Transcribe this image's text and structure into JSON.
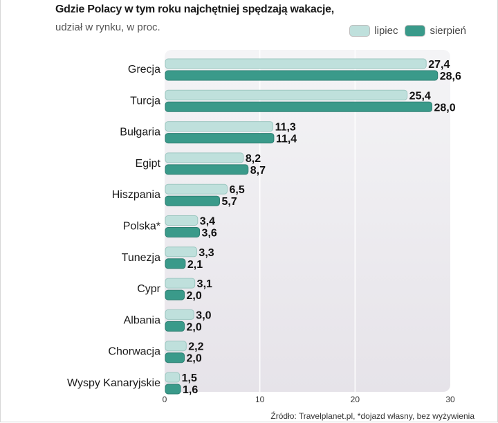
{
  "chart_data": {
    "type": "bar",
    "orientation": "horizontal",
    "title": "Gdzie Polacy w tym roku najchętniej spędzają wakacje,",
    "subtitle": "udział w rynku, w proc.",
    "categories": [
      "Grecja",
      "Turcja",
      "Bułgaria",
      "Egipt",
      "Hiszpania",
      "Polska*",
      "Tunezja",
      "Cypr",
      "Albania",
      "Chorwacja",
      "Wyspy Kanaryjskie"
    ],
    "series": [
      {
        "name": "lipiec",
        "color": "#bfe0dc",
        "values": [
          27.4,
          25.4,
          11.3,
          8.2,
          6.5,
          3.4,
          3.3,
          3.1,
          3.0,
          2.2,
          1.5
        ],
        "labels": [
          "27,4",
          "25,4",
          "11,3",
          "8,2",
          "6,5",
          "3,4",
          "3,3",
          "3,1",
          "3,0",
          "2,2",
          "1,5"
        ]
      },
      {
        "name": "sierpień",
        "color": "#3a9a8a",
        "values": [
          28.6,
          28.0,
          11.4,
          8.7,
          5.7,
          3.6,
          2.1,
          2.0,
          2.0,
          2.0,
          1.6
        ],
        "labels": [
          "28,6",
          "28,0",
          "11,4",
          "8,7",
          "5,7",
          "3,6",
          "2,1",
          "2,0",
          "2,0",
          "2,0",
          "1,6"
        ]
      }
    ],
    "xlim": [
      0,
      30
    ],
    "xticks": [
      "0",
      "10",
      "20",
      "30"
    ],
    "grid": true,
    "legend_position": "top-right",
    "source": "Źródło:  Travelplanet.pl, *dojazd własny, bez wyżywienia"
  }
}
